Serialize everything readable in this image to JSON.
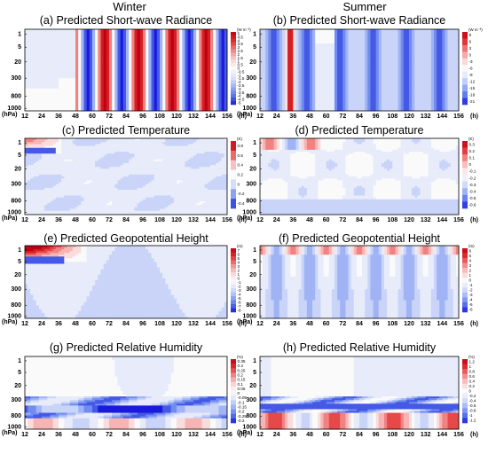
{
  "columns": [
    "Winter",
    "Summer"
  ],
  "chart_data": [
    {
      "id": "a",
      "type": "heatmap",
      "title": "(a) Predicted Short-wave Radiance",
      "season": "Winter",
      "variable": "sw",
      "unit": "(W m⁻²)",
      "x_ticks": [
        "12",
        "24",
        "36",
        "48",
        "60",
        "72",
        "84",
        "96",
        "108",
        "120",
        "132",
        "144",
        "156"
      ],
      "x_unit": "(h)",
      "y_ticks": [
        "1",
        "5",
        "20",
        "300",
        "800",
        "1000"
      ],
      "y_unit": "(hPa)",
      "colorbar": [
        "5",
        "4.5",
        "4",
        "3.5",
        "3",
        "2.5",
        "2",
        "1.5",
        "1",
        "0.5",
        "0",
        "-0.5",
        "-1",
        "-1.5",
        "-2",
        "-2.5",
        "-3",
        "-3.5",
        "-4",
        "-4.5",
        "-5"
      ]
    },
    {
      "id": "b",
      "type": "heatmap",
      "title": "(b) Predicted Short-wave Radiance",
      "season": "Summer",
      "variable": "sw",
      "unit": "(W m⁻²)",
      "x_ticks": [
        "12",
        "24",
        "36",
        "48",
        "60",
        "72",
        "84",
        "96",
        "108",
        "120",
        "132",
        "144",
        "156"
      ],
      "x_unit": "(h)",
      "y_ticks": [
        "1",
        "5",
        "20",
        "300",
        "800",
        "1000"
      ],
      "y_unit": "(hPa)",
      "colorbar": [
        "9",
        "6",
        "3",
        "0",
        "-3",
        "-6",
        "-9",
        "-12",
        "-15",
        "-18",
        "-21"
      ]
    },
    {
      "id": "c",
      "type": "heatmap",
      "title": "(c) Predicted Temperature",
      "season": "Winter",
      "variable": "t",
      "unit": "(K)",
      "x_ticks": [
        "12",
        "24",
        "36",
        "48",
        "60",
        "72",
        "84",
        "96",
        "108",
        "120",
        "132",
        "144",
        "156"
      ],
      "x_unit": "(h)",
      "y_ticks": [
        "1",
        "5",
        "20",
        "300",
        "800",
        "1000"
      ],
      "y_unit": "(hPa)",
      "colorbar": [
        "0.8",
        "0.6",
        "0.4",
        "0.2",
        "0",
        "-0.2",
        "-0.4"
      ]
    },
    {
      "id": "d",
      "type": "heatmap",
      "title": "(d) Predicted Temperature",
      "season": "Summer",
      "variable": "t",
      "unit": "(K)",
      "x_ticks": [
        "12",
        "24",
        "36",
        "48",
        "60",
        "72",
        "84",
        "96",
        "108",
        "120",
        "132",
        "144",
        "156"
      ],
      "x_unit": "(h)",
      "y_ticks": [
        "1",
        "5",
        "20",
        "300",
        "800",
        "1000"
      ],
      "y_unit": "(hPa)",
      "colorbar": [
        "0.3",
        "0.2",
        "0.1",
        "0",
        "-0.1",
        "-0.2",
        "-0.3",
        "-0.4",
        "-0.5",
        "-0.6"
      ]
    },
    {
      "id": "e",
      "type": "heatmap",
      "title": "(e) Predicted Geopotential Height",
      "season": "Winter",
      "variable": "z",
      "unit": "(m)",
      "x_ticks": [
        "12",
        "24",
        "36",
        "48",
        "60",
        "72",
        "84",
        "96",
        "108",
        "120",
        "132",
        "144",
        "156"
      ],
      "x_unit": "(h)",
      "y_ticks": [
        "1",
        "5",
        "20",
        "300",
        "800",
        "1000"
      ],
      "y_unit": "(hPa)",
      "colorbar": [
        "7",
        "6",
        "5",
        "4",
        "3",
        "2",
        "1",
        "0",
        "-1",
        "-2",
        "-3",
        "-4",
        "-5",
        "-6",
        "-7",
        "-8"
      ]
    },
    {
      "id": "f",
      "type": "heatmap",
      "title": "(f) Predicted Geopotential Height",
      "season": "Summer",
      "variable": "z",
      "unit": "(m)",
      "x_ticks": [
        "12",
        "24",
        "36",
        "48",
        "60",
        "72",
        "84",
        "96",
        "108",
        "120",
        "132",
        "144",
        "156"
      ],
      "x_unit": "(h)",
      "y_ticks": [
        "1",
        "5",
        "20",
        "300",
        "800",
        "1000"
      ],
      "y_unit": "(hPa)",
      "colorbar": [
        "6",
        "5",
        "4",
        "3",
        "2",
        "1",
        "0",
        "-1",
        "-2",
        "-3",
        "-4",
        "-5",
        "-6"
      ]
    },
    {
      "id": "g",
      "type": "heatmap",
      "title": "(g) Predicted Relative Humidity",
      "season": "Winter",
      "variable": "rh",
      "unit": "(%)",
      "x_ticks": [
        "12",
        "24",
        "36",
        "48",
        "60",
        "72",
        "84",
        "96",
        "108",
        "120",
        "132",
        "144",
        "156"
      ],
      "x_unit": "(h)",
      "y_ticks": [
        "1",
        "5",
        "20",
        "300",
        "800",
        "1000"
      ],
      "y_unit": "(hPa)",
      "colorbar": [
        "0.35",
        "0.3",
        "0.25",
        "0.2",
        "0.15",
        "0.1",
        "0.05",
        "0",
        "-0.05",
        "-0.1",
        "-0.15",
        "-0.2",
        "-0.25",
        "-0.3"
      ]
    },
    {
      "id": "h",
      "type": "heatmap",
      "title": "(h) Predicted Relative Humidity",
      "season": "Summer",
      "variable": "rh",
      "unit": "(%)",
      "x_ticks": [
        "12",
        "24",
        "36",
        "48",
        "60",
        "72",
        "84",
        "96",
        "108",
        "120",
        "132",
        "144",
        "156"
      ],
      "x_unit": "(h)",
      "y_ticks": [
        "1",
        "5",
        "20",
        "300",
        "800",
        "1000"
      ],
      "y_unit": "(hPa)",
      "colorbar": [
        "1.2",
        "1",
        "0.8",
        "0.6",
        "0.4",
        "0.2",
        "0",
        "-0.2",
        "-0.4",
        "-0.6",
        "-0.8",
        "-1",
        "-1.2"
      ]
    }
  ]
}
